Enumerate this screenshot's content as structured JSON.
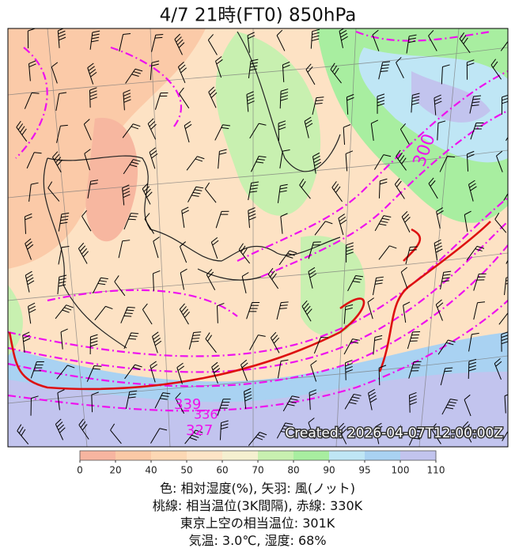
{
  "title": "4/7  21時(FT0)    850hPa",
  "created": "Created: 2026-04-07T12:00:00Z",
  "contour_labels": [
    "339",
    "327",
    "336",
    "300"
  ],
  "colorbar": {
    "ticks": [
      0,
      20,
      40,
      50,
      60,
      70,
      80,
      90,
      95,
      100,
      110
    ],
    "colors": [
      "#f7b5a0",
      "#fbc9a6",
      "#fdd8b4",
      "#fee4c6",
      "#f5f0d0",
      "#c8f0b0",
      "#a8eea0",
      "#bfe6f5",
      "#a9d2f2",
      "#c2c4ee"
    ]
  },
  "caption": [
    "色: 相対湿度(%), 矢羽: 風(ノット)",
    "桃線: 相当温位(3K間隔), 赤線: 330K",
    "東京上空の相当温位: 301K",
    "気温: 3.0℃, 湿度: 68%"
  ]
}
